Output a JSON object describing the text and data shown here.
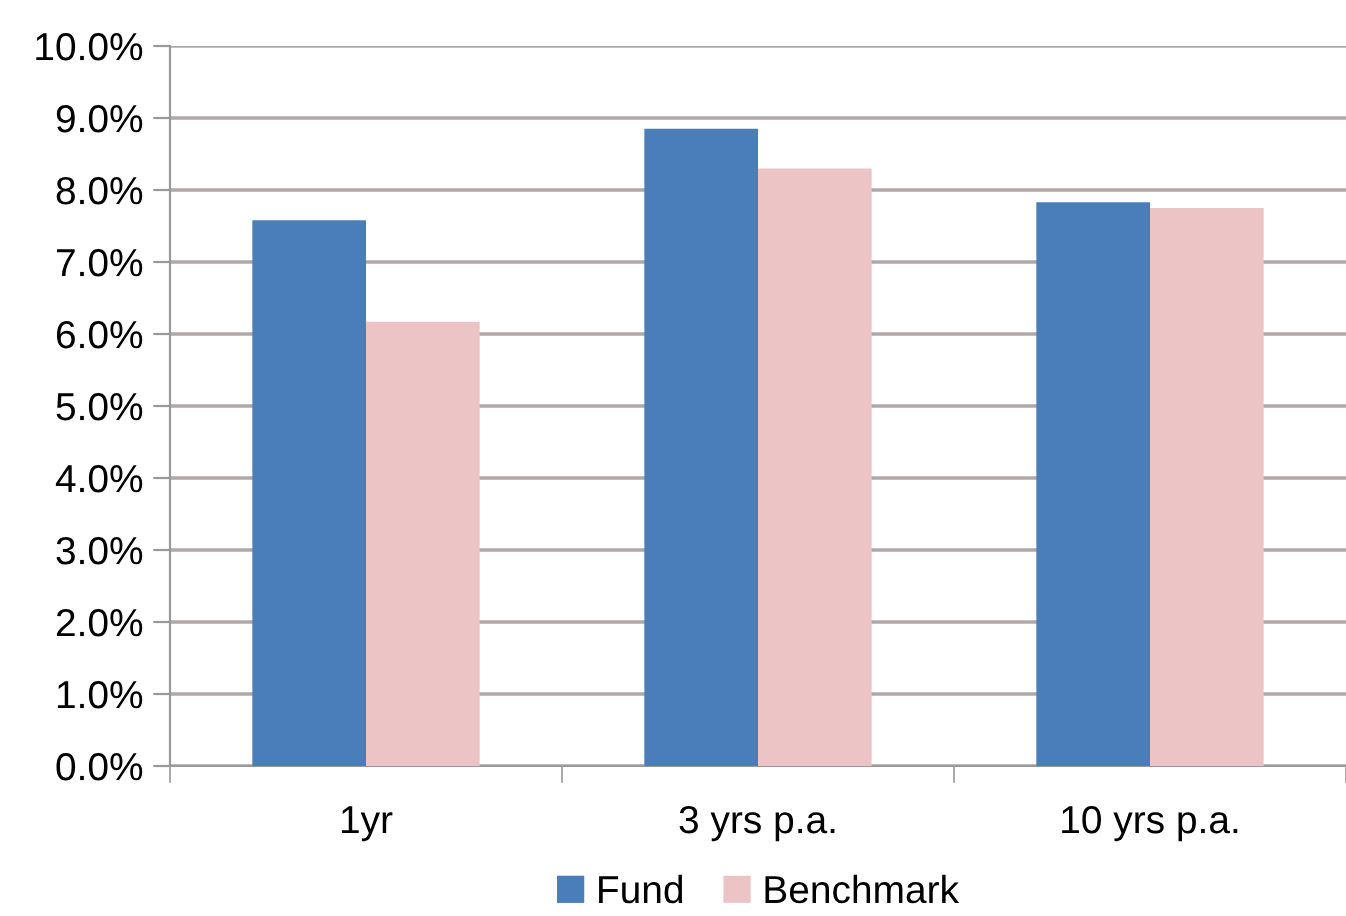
{
  "chart_data": {
    "type": "bar",
    "categories": [
      "1yr",
      "3 yrs p.a.",
      "10 yrs p.a."
    ],
    "series": [
      {
        "name": "Fund",
        "color": "#4a7ebb",
        "values": [
          7.58,
          8.85,
          7.83
        ]
      },
      {
        "name": "Benchmark",
        "color": "#edc4c6",
        "values": [
          6.17,
          8.3,
          7.75
        ]
      }
    ],
    "ylim": [
      0,
      10
    ],
    "yticks": [
      {
        "value": 0,
        "label": "0.0%"
      },
      {
        "value": 1,
        "label": "1.0%"
      },
      {
        "value": 2,
        "label": "2.0%"
      },
      {
        "value": 3,
        "label": "3.0%"
      },
      {
        "value": 4,
        "label": "4.0%"
      },
      {
        "value": 5,
        "label": "5.0%"
      },
      {
        "value": 6,
        "label": "6.0%"
      },
      {
        "value": 7,
        "label": "7.0%"
      },
      {
        "value": 8,
        "label": "8.0%"
      },
      {
        "value": 9,
        "label": "9.0%"
      },
      {
        "value": 10,
        "label": "10.0%"
      }
    ],
    "grid": "y",
    "legend": "bottom"
  }
}
